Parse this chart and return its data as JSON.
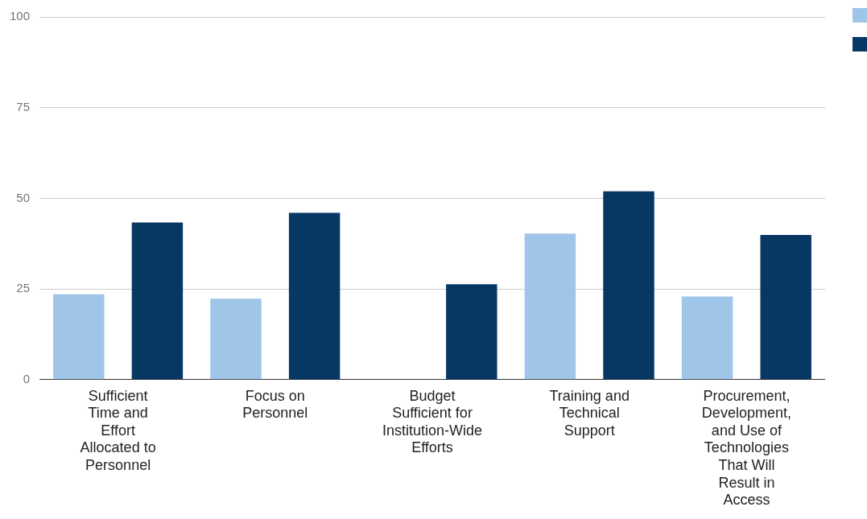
{
  "chart_data": {
    "type": "bar",
    "categories": [
      "Sufficient Time and Effort Allocated to Personnel",
      "Focus on Personnel",
      "Budget Sufficient for Institution-Wide Efforts",
      "Training and Technical Support",
      "Procurement, Development, and Use of Technologies That Will Result in Access"
    ],
    "series": [
      {
        "color": "#9fc5e8",
        "values": [
          23.5,
          22.3,
          null,
          40.3,
          22.9
        ]
      },
      {
        "color": "#073763",
        "values": [
          43.3,
          46.0,
          26.3,
          51.9,
          39.9
        ]
      }
    ],
    "ylim": [
      0,
      100
    ],
    "yticks": [
      0,
      25,
      50,
      75,
      100
    ],
    "grid": "y"
  }
}
